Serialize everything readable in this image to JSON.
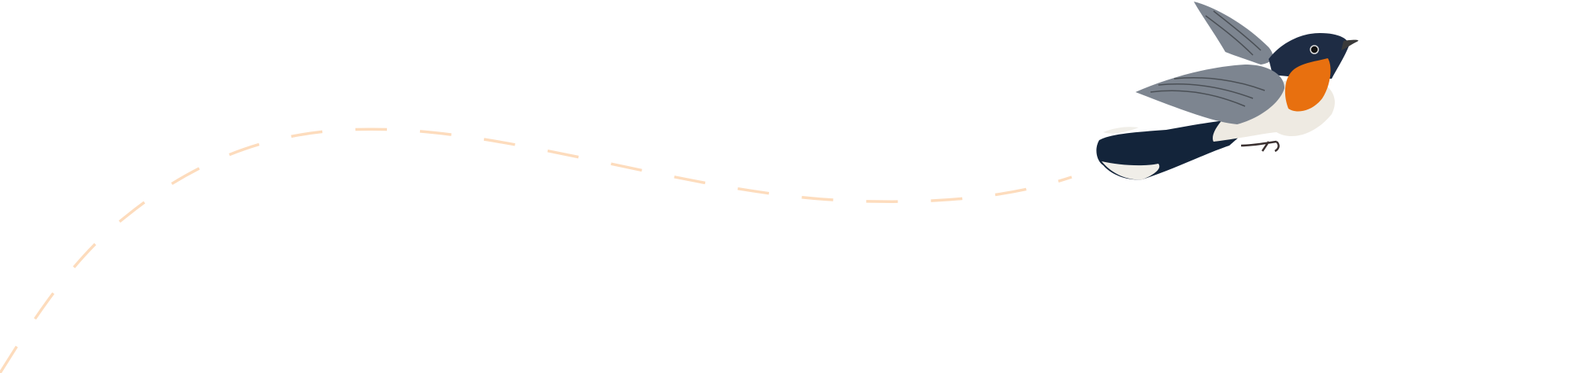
{
  "illustration": {
    "subject": "bird-illustration",
    "path_style": "dashed-flight-path"
  },
  "colors": {
    "background": "#ffffff",
    "path": "#fddcbd",
    "bird_throat": "#e8700f",
    "bird_head": "#1e2c44",
    "bird_wing": "#7d8590",
    "bird_belly": "#eeeae2",
    "bird_tail": "#13243a"
  }
}
